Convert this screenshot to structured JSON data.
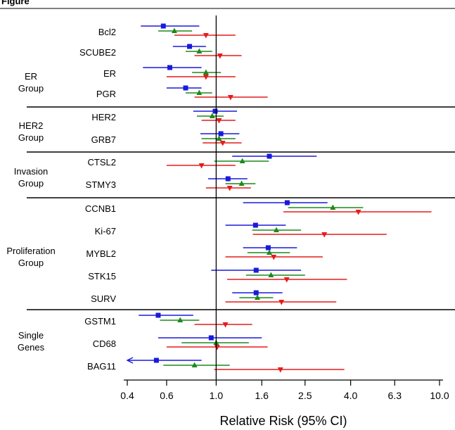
{
  "figure_label": "Figure",
  "chart_data": {
    "type": "forest",
    "xlabel": "Relative Risk (95% CI)",
    "x_scale": "log",
    "xlim": [
      0.4,
      10.0
    ],
    "reference_line": 1.0,
    "x_ticks": [
      "0.4",
      "0.6",
      "1.0",
      "1.6",
      "2.5",
      "4.0",
      "6.3",
      "10.0"
    ],
    "series": [
      {
        "marker": "square",
        "color": "#1a1adb"
      },
      {
        "marker": "triangle-up",
        "color": "#1b8a1b"
      },
      {
        "marker": "triangle-down",
        "color": "#e61b1b"
      }
    ],
    "groups": [
      {
        "label_lines": [
          "ER",
          "Group"
        ],
        "genes": [
          {
            "name": "Bcl2",
            "rows": [
              {
                "rr": 0.58,
                "lo": 0.46,
                "hi": 0.84
              },
              {
                "rr": 0.65,
                "lo": 0.55,
                "hi": 0.78
              },
              {
                "rr": 0.9,
                "lo": 0.65,
                "hi": 1.22
              }
            ]
          },
          {
            "name": "SCUBE2",
            "rows": [
              {
                "rr": 0.76,
                "lo": 0.64,
                "hi": 0.9
              },
              {
                "rr": 0.84,
                "lo": 0.73,
                "hi": 0.96
              },
              {
                "rr": 1.04,
                "lo": 0.8,
                "hi": 1.3
              }
            ]
          },
          {
            "name": "ER",
            "rows": [
              {
                "rr": 0.62,
                "lo": 0.47,
                "hi": 0.86
              },
              {
                "rr": 0.9,
                "lo": 0.78,
                "hi": 1.05
              },
              {
                "rr": 0.9,
                "lo": 0.6,
                "hi": 1.22
              }
            ]
          },
          {
            "name": "PGR",
            "rows": [
              {
                "rr": 0.73,
                "lo": 0.6,
                "hi": 0.86
              },
              {
                "rr": 0.84,
                "lo": 0.73,
                "hi": 0.96
              },
              {
                "rr": 1.16,
                "lo": 0.8,
                "hi": 1.7
              }
            ]
          }
        ]
      },
      {
        "label_lines": [
          "HER2",
          "Group"
        ],
        "genes": [
          {
            "name": "HER2",
            "rows": [
              {
                "rr": 0.99,
                "lo": 0.79,
                "hi": 1.24
              },
              {
                "rr": 0.96,
                "lo": 0.82,
                "hi": 1.08
              },
              {
                "rr": 1.03,
                "lo": 0.86,
                "hi": 1.22
              }
            ]
          },
          {
            "name": "GRB7",
            "rows": [
              {
                "rr": 1.05,
                "lo": 0.85,
                "hi": 1.27
              },
              {
                "rr": 1.03,
                "lo": 0.86,
                "hi": 1.22
              },
              {
                "rr": 1.07,
                "lo": 0.87,
                "hi": 1.3
              }
            ]
          }
        ]
      },
      {
        "label_lines": [
          "Invasion",
          "Group"
        ],
        "genes": [
          {
            "name": "CTSL2",
            "rows": [
              {
                "rr": 1.73,
                "lo": 1.18,
                "hi": 2.82
              },
              {
                "rr": 1.31,
                "lo": 0.98,
                "hi": 1.72
              },
              {
                "rr": 0.86,
                "lo": 0.6,
                "hi": 1.22
              }
            ]
          },
          {
            "name": "STMY3",
            "rows": [
              {
                "rr": 1.13,
                "lo": 0.92,
                "hi": 1.38
              },
              {
                "rr": 1.3,
                "lo": 1.1,
                "hi": 1.5
              },
              {
                "rr": 1.15,
                "lo": 0.9,
                "hi": 1.43
              }
            ]
          }
        ]
      },
      {
        "label_lines": [
          "Proliferation",
          "Group"
        ],
        "genes": [
          {
            "name": "CCNB1",
            "rows": [
              {
                "rr": 2.08,
                "lo": 1.32,
                "hi": 3.15
              },
              {
                "rr": 3.33,
                "lo": 2.1,
                "hi": 4.55
              },
              {
                "rr": 4.33,
                "lo": 2.0,
                "hi": 9.2
              }
            ]
          },
          {
            "name": "Ki-67",
            "rows": [
              {
                "rr": 1.5,
                "lo": 1.1,
                "hi": 2.05
              },
              {
                "rr": 1.86,
                "lo": 1.45,
                "hi": 2.4
              },
              {
                "rr": 3.05,
                "lo": 1.46,
                "hi": 5.8
              }
            ]
          },
          {
            "name": "MYBL2",
            "rows": [
              {
                "rr": 1.71,
                "lo": 1.32,
                "hi": 2.3
              },
              {
                "rr": 1.73,
                "lo": 1.38,
                "hi": 2.14
              },
              {
                "rr": 1.81,
                "lo": 1.1,
                "hi": 3.0
              }
            ]
          },
          {
            "name": "STK15",
            "rows": [
              {
                "rr": 1.51,
                "lo": 0.95,
                "hi": 2.4
              },
              {
                "rr": 1.76,
                "lo": 1.36,
                "hi": 2.5
              },
              {
                "rr": 2.07,
                "lo": 1.12,
                "hi": 3.85
              }
            ]
          },
          {
            "name": "SURV",
            "rows": [
              {
                "rr": 1.51,
                "lo": 1.18,
                "hi": 1.98
              },
              {
                "rr": 1.53,
                "lo": 1.27,
                "hi": 1.8
              },
              {
                "rr": 1.96,
                "lo": 1.1,
                "hi": 3.45
              }
            ]
          }
        ]
      },
      {
        "label_lines": [
          "Single",
          "Genes"
        ],
        "genes": [
          {
            "name": "GSTM1",
            "rows": [
              {
                "rr": 0.55,
                "lo": 0.45,
                "hi": 0.79
              },
              {
                "rr": 0.69,
                "lo": 0.56,
                "hi": 0.84
              },
              {
                "rr": 1.1,
                "lo": 0.8,
                "hi": 1.45
              }
            ]
          },
          {
            "name": "CD68",
            "rows": [
              {
                "rr": 0.95,
                "lo": 0.55,
                "hi": 1.6
              },
              {
                "rr": 1.0,
                "lo": 0.7,
                "hi": 1.4
              },
              {
                "rr": 1.01,
                "lo": 0.6,
                "hi": 1.7
              }
            ]
          },
          {
            "name": "BAG11",
            "rows": [
              {
                "rr": 0.54,
                "lo": 0.4,
                "hi": 0.86,
                "lo_arrow": true
              },
              {
                "rr": 0.8,
                "lo": 0.58,
                "hi": 1.15
              },
              {
                "rr": 1.94,
                "lo": 0.98,
                "hi": 3.75
              }
            ]
          }
        ]
      }
    ]
  }
}
